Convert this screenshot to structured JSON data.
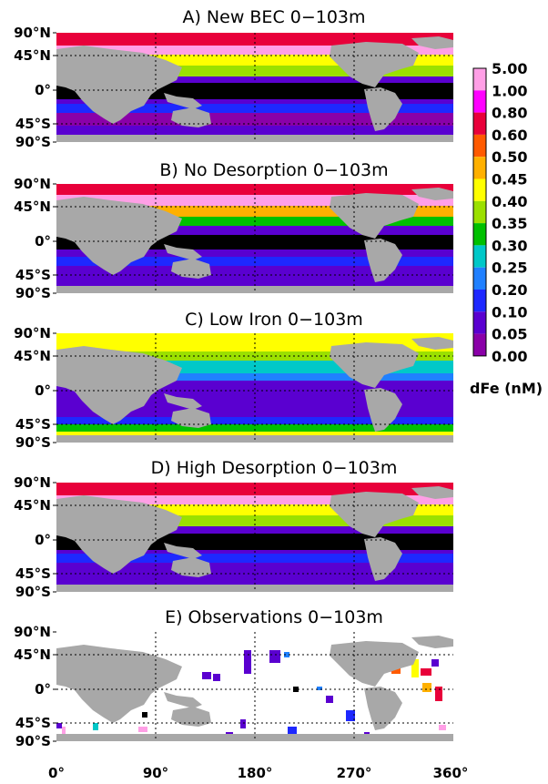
{
  "figure": {
    "panels": [
      {
        "id": "A",
        "title": "A) New BEC 0−103m",
        "scenario": "new-bec"
      },
      {
        "id": "B",
        "title": "B) No Desorption 0−103m",
        "scenario": "no-desorption"
      },
      {
        "id": "C",
        "title": "C) Low Iron 0−103m",
        "scenario": "low-iron"
      },
      {
        "id": "D",
        "title": "D) High Desorption 0−103m",
        "scenario": "high-desorption"
      },
      {
        "id": "E",
        "title": "E) Observations 0−103m",
        "scenario": "observations"
      }
    ],
    "lat_labels": [
      "90°N",
      "45°N",
      "0°",
      "45°S",
      "90°S"
    ],
    "lon_labels": [
      "0°",
      "90°",
      "180°",
      "270°",
      "360°"
    ],
    "colorbar": {
      "labels": [
        "5.00",
        "1.00",
        "0.80",
        "0.60",
        "0.50",
        "0.45",
        "0.40",
        "0.35",
        "0.30",
        "0.25",
        "0.20",
        "0.10",
        "0.05",
        "0.00"
      ],
      "colors": [
        "#ff9fe6",
        "#ff00ff",
        "#e8003a",
        "#ff5a00",
        "#ffb000",
        "#ffff00",
        "#9be000",
        "#00c000",
        "#00c8c8",
        "#2080ff",
        "#1e28ff",
        "#5a00d0",
        "#8a00a8",
        "#000000"
      ],
      "unit_label": "dFe (nM)"
    },
    "land_color": "#a8a8a8"
  }
}
